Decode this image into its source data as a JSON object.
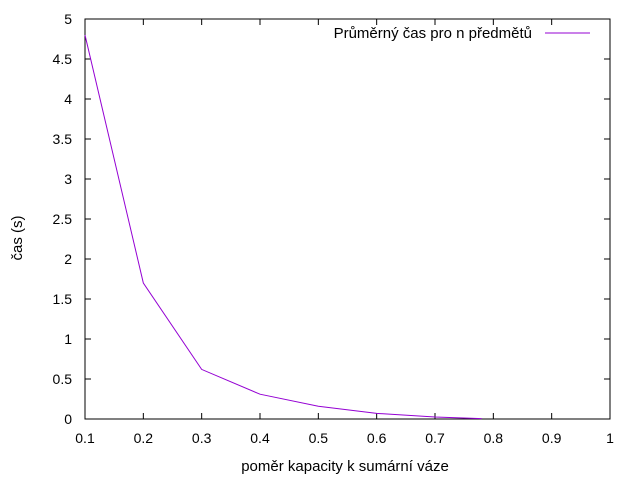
{
  "chart_data": {
    "type": "line",
    "xlabel": "poměr kapacity k sumární váze",
    "ylabel": "čas (s)",
    "xlim": [
      0.1,
      1.0
    ],
    "ylim": [
      0,
      5
    ],
    "x_ticks": [
      0.1,
      0.2,
      0.3,
      0.4,
      0.5,
      0.6,
      0.7,
      0.8,
      0.9,
      1.0
    ],
    "x_tick_labels": [
      "0.1",
      "0.2",
      "0.3",
      "0.4",
      "0.5",
      "0.6",
      "0.7",
      "0.8",
      "0.9",
      "1"
    ],
    "y_ticks": [
      0,
      0.5,
      1,
      1.5,
      2,
      2.5,
      3,
      3.5,
      4,
      4.5,
      5
    ],
    "y_tick_labels": [
      "0",
      "0.5",
      "1",
      "1.5",
      "2",
      "2.5",
      "3",
      "3.5",
      "4",
      "4.5",
      "5"
    ],
    "grid": false,
    "legend_position": "top-right",
    "series": [
      {
        "name": "Průměrný čas pro n předmětů",
        "color": "#9400d3",
        "x": [
          0.1,
          0.2,
          0.3,
          0.4,
          0.5,
          0.6,
          0.7,
          0.78
        ],
        "y": [
          4.8,
          1.7,
          0.62,
          0.31,
          0.16,
          0.07,
          0.025,
          0.005
        ]
      }
    ]
  }
}
